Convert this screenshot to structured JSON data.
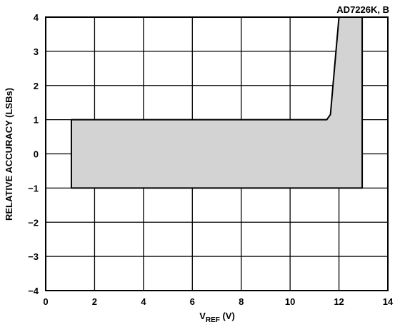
{
  "chart_data": {
    "type": "area",
    "title": "",
    "series_label": "AD7226K, B",
    "xlabel_main": "V",
    "xlabel_sub": "REF",
    "xlabel_unit": " (V)",
    "ylabel": "RELATIVE ACCURACY (LSBs)",
    "xlim": [
      0,
      14
    ],
    "ylim": [
      -4,
      4
    ],
    "x_ticks": [
      0,
      2,
      4,
      6,
      8,
      10,
      12,
      14
    ],
    "y_ticks": [
      4,
      3,
      2,
      1,
      0,
      -1,
      -2,
      -3,
      -4
    ],
    "x_tick_labels": [
      "0",
      "2",
      "4",
      "6",
      "8",
      "10",
      "12",
      "14"
    ],
    "y_tick_labels": [
      "4",
      "3",
      "2",
      "1",
      "0",
      "−1",
      "−2",
      "−3",
      "−4"
    ],
    "grid": true,
    "fill_color": "#d3d3d3",
    "region": {
      "upper": [
        [
          1.05,
          1
        ],
        [
          11.5,
          1
        ],
        [
          11.65,
          1.15
        ],
        [
          12,
          4
        ],
        [
          12.95,
          4
        ]
      ],
      "lower": [
        [
          1.05,
          -1
        ],
        [
          12.95,
          -1
        ]
      ]
    }
  }
}
